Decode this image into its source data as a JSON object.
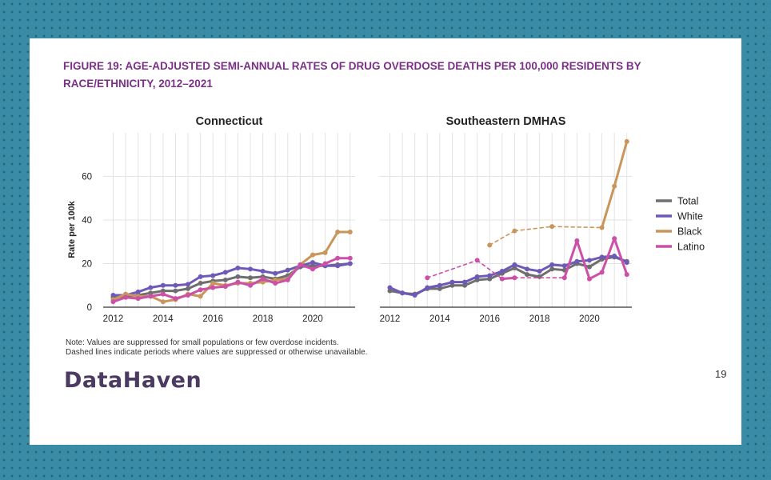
{
  "title": "FIGURE 19: AGE-ADJUSTED SEMI-ANNUAL RATES OF DRUG OVERDOSE DEATHS PER 100,000 RESIDENTS BY RACE/ETHNICITY, 2012–2021",
  "note_lines": [
    "Note: Values are suppressed for small populations or few overdose incidents.",
    "Dashed lines indicate periods where values are suppressed or otherwise unavailable."
  ],
  "brand": "DataHaven",
  "page_number": "19",
  "chart_data": {
    "type": "line",
    "ylabel": "Rate per 100k",
    "ylim": [
      0,
      80
    ],
    "yticks": [
      0,
      20,
      40,
      60
    ],
    "xlim": [
      2011.6,
      2021.7
    ],
    "xticks": [
      2012,
      2014,
      2016,
      2018,
      2020
    ],
    "grid": true,
    "legend_position": "right",
    "series_styles": [
      {
        "name": "Total",
        "color": "#6e6e6e"
      },
      {
        "name": "White",
        "color": "#6f59b8"
      },
      {
        "name": "Black",
        "color": "#c8955a"
      },
      {
        "name": "Latino",
        "color": "#cc4fa8"
      }
    ],
    "panels": [
      {
        "title": "Connecticut",
        "series": [
          {
            "name": "Total",
            "points": [
              [
                2012,
                4.5
              ],
              [
                2012.5,
                5
              ],
              [
                2013,
                5.5
              ],
              [
                2013.5,
                6.5
              ],
              [
                2014,
                7.5
              ],
              [
                2014.5,
                7.5
              ],
              [
                2015,
                8.5
              ],
              [
                2015.5,
                11
              ],
              [
                2016,
                12
              ],
              [
                2016.5,
                12.5
              ],
              [
                2017,
                14
              ],
              [
                2017.5,
                13.5
              ],
              [
                2018,
                14
              ],
              [
                2018.5,
                13
              ],
              [
                2019,
                14.5
              ],
              [
                2019.5,
                18.5
              ],
              [
                2020,
                19
              ],
              [
                2020.5,
                19
              ],
              [
                2021,
                19.5
              ],
              [
                2021.5,
                20
              ]
            ]
          },
          {
            "name": "White",
            "points": [
              [
                2012,
                5.5
              ],
              [
                2012.5,
                5.5
              ],
              [
                2013,
                7
              ],
              [
                2013.5,
                9
              ],
              [
                2014,
                10
              ],
              [
                2014.5,
                10
              ],
              [
                2015,
                10.5
              ],
              [
                2015.5,
                14
              ],
              [
                2016,
                14.5
              ],
              [
                2016.5,
                16
              ],
              [
                2017,
                18
              ],
              [
                2017.5,
                17.5
              ],
              [
                2018,
                16.5
              ],
              [
                2018.5,
                15.5
              ],
              [
                2019,
                17
              ],
              [
                2019.5,
                19
              ],
              [
                2020,
                20.5
              ],
              [
                2020.5,
                19
              ],
              [
                2021,
                19
              ],
              [
                2021.5,
                20
              ]
            ]
          },
          {
            "name": "Black",
            "points": [
              [
                2012,
                3.5
              ],
              [
                2012.5,
                6
              ],
              [
                2013,
                5
              ],
              [
                2013.5,
                5
              ],
              [
                2014,
                2.5
              ],
              [
                2014.5,
                3.5
              ],
              [
                2015,
                6
              ],
              [
                2015.5,
                5
              ],
              [
                2016,
                11
              ],
              [
                2016.5,
                10
              ],
              [
                2017,
                11
              ],
              [
                2017.5,
                11
              ],
              [
                2018,
                11.5
              ],
              [
                2018.5,
                12.5
              ],
              [
                2019,
                13
              ],
              [
                2019.5,
                19.5
              ],
              [
                2020,
                24
              ],
              [
                2020.5,
                25
              ],
              [
                2021,
                34.5
              ],
              [
                2021.5,
                34.5
              ]
            ]
          },
          {
            "name": "Latino",
            "points": [
              [
                2012,
                2.5
              ],
              [
                2012.5,
                4.5
              ],
              [
                2013,
                4
              ],
              [
                2013.5,
                5
              ],
              [
                2014,
                6
              ],
              [
                2014.5,
                4
              ],
              [
                2015,
                5.5
              ],
              [
                2015.5,
                8
              ],
              [
                2016,
                9
              ],
              [
                2016.5,
                9.5
              ],
              [
                2017,
                11.5
              ],
              [
                2017.5,
                10
              ],
              [
                2018,
                13
              ],
              [
                2018.5,
                11
              ],
              [
                2019,
                12.5
              ],
              [
                2019.5,
                19.5
              ],
              [
                2020,
                17.5
              ],
              [
                2020.5,
                20
              ],
              [
                2021,
                22.5
              ],
              [
                2021.5,
                22.5
              ]
            ]
          }
        ]
      },
      {
        "title": "Southeastern DMHAS",
        "series": [
          {
            "name": "Total",
            "points": [
              [
                2012,
                7.5
              ],
              [
                2012.5,
                6.5
              ],
              [
                2013,
                6
              ],
              [
                2013.5,
                8.5
              ],
              [
                2014,
                8.5
              ],
              [
                2014.5,
                10
              ],
              [
                2015,
                10
              ],
              [
                2015.5,
                12.5
              ],
              [
                2016,
                13
              ],
              [
                2016.5,
                15.5
              ],
              [
                2017,
                18
              ],
              [
                2017.5,
                15
              ],
              [
                2018,
                14
              ],
              [
                2018.5,
                17.5
              ],
              [
                2019,
                17
              ],
              [
                2019.5,
                20
              ],
              [
                2020,
                18.5
              ],
              [
                2020.5,
                22
              ],
              [
                2021,
                23
              ],
              [
                2021.5,
                21
              ]
            ]
          },
          {
            "name": "White",
            "points": [
              [
                2012,
                9
              ],
              [
                2012.5,
                6.5
              ],
              [
                2013,
                5.5
              ],
              [
                2013.5,
                9
              ],
              [
                2014,
                10
              ],
              [
                2014.5,
                11.5
              ],
              [
                2015,
                11.5
              ],
              [
                2015.5,
                14
              ],
              [
                2016,
                14.5
              ],
              [
                2016.5,
                16.5
              ],
              [
                2017,
                19.5
              ],
              [
                2017.5,
                17.5
              ],
              [
                2018,
                16.5
              ],
              [
                2018.5,
                19.5
              ],
              [
                2019,
                19
              ],
              [
                2019.5,
                21
              ],
              [
                2020,
                21.5
              ],
              [
                2020.5,
                23
              ],
              [
                2021,
                23.5
              ],
              [
                2021.5,
                20.5
              ]
            ]
          },
          {
            "name": "Black",
            "points": [
              [
                2016,
                28.5
              ],
              [
                2017,
                35
              ],
              [
                2018.5,
                37
              ],
              [
                2020.5,
                36.5
              ],
              [
                2021,
                55.5
              ],
              [
                2021.5,
                76
              ]
            ],
            "dashed_segments": [
              [
                0,
                1
              ],
              [
                1,
                2
              ],
              [
                2,
                3
              ]
            ]
          },
          {
            "name": "Latino",
            "points": [
              [
                2013.5,
                13.5
              ],
              [
                2015.5,
                21.5
              ],
              [
                2016.5,
                13
              ],
              [
                2017,
                13.5
              ],
              [
                2019,
                13.5
              ],
              [
                2019.5,
                30.5
              ],
              [
                2020,
                13
              ],
              [
                2020.5,
                16
              ],
              [
                2021,
                31.5
              ],
              [
                2021.5,
                15
              ]
            ],
            "dashed_segments": [
              [
                0,
                1
              ],
              [
                1,
                2
              ],
              [
                3,
                4
              ]
            ]
          }
        ]
      }
    ]
  }
}
